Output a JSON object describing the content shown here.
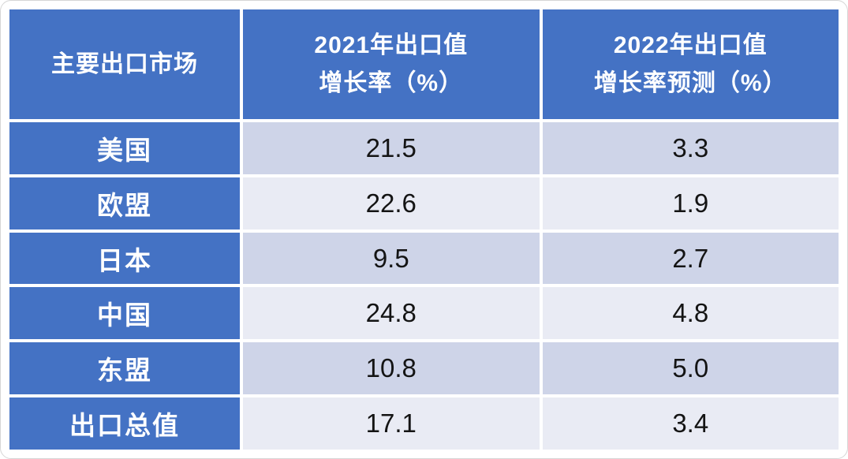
{
  "colors": {
    "header_blue": "#4472C4",
    "row_band_dark": "#CED4E8",
    "row_band_light": "#E9EBF4",
    "grid_white": "#FFFFFF",
    "text_dark": "#141414",
    "text_white": "#FFFFFF"
  },
  "table": {
    "columns": {
      "market": "主要出口市场",
      "growth_2021": "2021年出口值\n增长率（%）",
      "growth_2022": "2022年出口值\n增长率预测（%）"
    },
    "rows": [
      {
        "market": "美国",
        "v2021": "21.5",
        "v2022": "3.3"
      },
      {
        "market": "欧盟",
        "v2021": "22.6",
        "v2022": "1.9"
      },
      {
        "market": "日本",
        "v2021": "9.5",
        "v2022": "2.7"
      },
      {
        "market": "中国",
        "v2021": "24.8",
        "v2022": "4.8"
      },
      {
        "market": "东盟",
        "v2021": "10.8",
        "v2022": "5.0"
      },
      {
        "market": "出口总值",
        "v2021": "17.1",
        "v2022": "3.4"
      }
    ]
  },
  "chart_data": {
    "type": "table",
    "title": "",
    "columns": [
      "主要出口市场",
      "2021年出口值增长率（%）",
      "2022年出口值增长率预测（%）"
    ],
    "rows": [
      [
        "美国",
        21.5,
        3.3
      ],
      [
        "欧盟",
        22.6,
        1.9
      ],
      [
        "日本",
        9.5,
        2.7
      ],
      [
        "中国",
        24.8,
        4.8
      ],
      [
        "东盟",
        10.8,
        5.0
      ],
      [
        "出口总值",
        17.1,
        3.4
      ]
    ],
    "series": [
      {
        "name": "2021年出口值增长率（%）",
        "values": [
          21.5,
          22.6,
          9.5,
          24.8,
          10.8,
          17.1
        ]
      },
      {
        "name": "2022年出口值增长率预测（%）",
        "values": [
          3.3,
          1.9,
          2.7,
          4.8,
          5.0,
          3.4
        ]
      }
    ],
    "categories": [
      "美国",
      "欧盟",
      "日本",
      "中国",
      "东盟",
      "出口总值"
    ]
  }
}
